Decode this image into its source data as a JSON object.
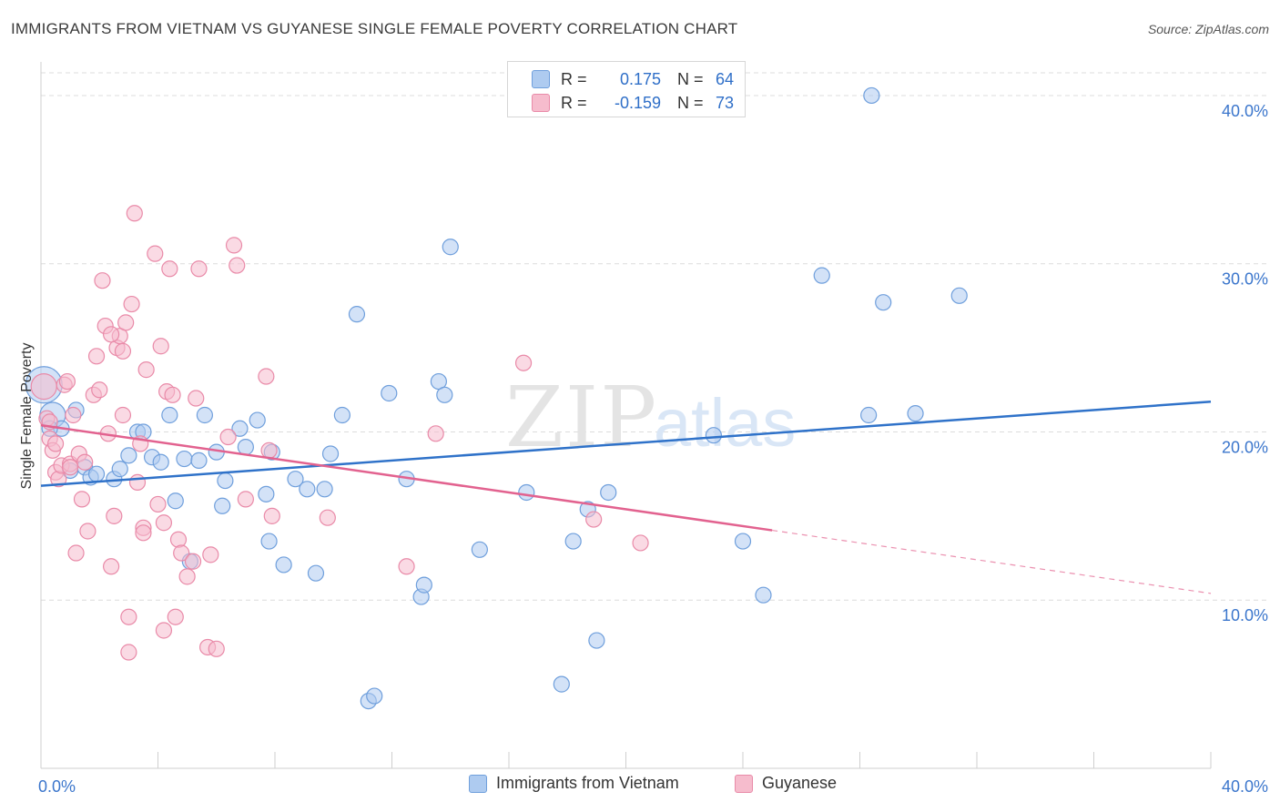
{
  "header": {
    "title": "IMMIGRANTS FROM VIETNAM VS GUYANESE SINGLE FEMALE POVERTY CORRELATION CHART",
    "source": "Source: ZipAtlas.com"
  },
  "watermark": {
    "zip": "ZIP",
    "atlas": "atlas"
  },
  "colors": {
    "blue_fill": "#aecbf0",
    "blue_stroke": "#6f9fdc",
    "blue_line": "#2f72c9",
    "pink_fill": "#f6bccd",
    "pink_stroke": "#e98aa8",
    "pink_line": "#e2628f",
    "tick_label": "#3b76cc",
    "grid": "#dcdcdc"
  },
  "legend_top": {
    "rows": [
      {
        "r_label": "R =",
        "r_value": "0.175",
        "n_label": "N =",
        "n_value": "64"
      },
      {
        "r_label": "R =",
        "r_value": "-0.159",
        "n_label": "N =",
        "n_value": "73"
      }
    ]
  },
  "chart_data": {
    "type": "scatter",
    "title": "IMMIGRANTS FROM VIETNAM VS GUYANESE SINGLE FEMALE POVERTY CORRELATION CHART",
    "xlabel": "",
    "ylabel": "Single Female Poverty",
    "xlim": [
      0,
      40
    ],
    "ylim": [
      0,
      42
    ],
    "x_tick_labels": {
      "left": "0.0%",
      "right": "40.0%"
    },
    "y_ticks": [
      {
        "value": 10,
        "label": "10.0%"
      },
      {
        "value": 20,
        "label": "20.0%"
      },
      {
        "value": 30,
        "label": "30.0%"
      },
      {
        "value": 40,
        "label": "40.0%"
      }
    ],
    "grid": true,
    "legend_position": "top-center",
    "series": [
      {
        "name": "Immigrants from Vietnam",
        "color": "blue",
        "trend": {
          "x": [
            0,
            40
          ],
          "y": [
            16.8,
            21.8
          ],
          "dashed_from": null
        },
        "points": [
          {
            "x": 0.1,
            "y": 22.8,
            "s": 3
          },
          {
            "x": 0.4,
            "y": 21.0,
            "s": 2
          },
          {
            "x": 0.7,
            "y": 20.2
          },
          {
            "x": 1.2,
            "y": 21.3
          },
          {
            "x": 1.0,
            "y": 17.7
          },
          {
            "x": 1.5,
            "y": 17.9
          },
          {
            "x": 1.7,
            "y": 17.3
          },
          {
            "x": 1.9,
            "y": 17.5
          },
          {
            "x": 2.5,
            "y": 17.2
          },
          {
            "x": 3.0,
            "y": 18.6
          },
          {
            "x": 2.7,
            "y": 17.8
          },
          {
            "x": 3.3,
            "y": 20.0
          },
          {
            "x": 3.5,
            "y": 20.0
          },
          {
            "x": 3.8,
            "y": 18.5
          },
          {
            "x": 4.1,
            "y": 18.2
          },
          {
            "x": 4.4,
            "y": 21.0
          },
          {
            "x": 4.6,
            "y": 15.9
          },
          {
            "x": 4.9,
            "y": 18.4
          },
          {
            "x": 5.1,
            "y": 12.3
          },
          {
            "x": 5.4,
            "y": 18.3
          },
          {
            "x": 5.6,
            "y": 21.0
          },
          {
            "x": 6.0,
            "y": 18.8
          },
          {
            "x": 6.2,
            "y": 15.6
          },
          {
            "x": 6.3,
            "y": 17.1
          },
          {
            "x": 6.8,
            "y": 20.2
          },
          {
            "x": 7.0,
            "y": 19.1
          },
          {
            "x": 7.4,
            "y": 20.7
          },
          {
            "x": 7.7,
            "y": 16.3
          },
          {
            "x": 7.8,
            "y": 13.5
          },
          {
            "x": 7.9,
            "y": 18.8
          },
          {
            "x": 8.3,
            "y": 12.1
          },
          {
            "x": 8.7,
            "y": 17.2
          },
          {
            "x": 9.1,
            "y": 16.6
          },
          {
            "x": 9.4,
            "y": 11.6
          },
          {
            "x": 9.7,
            "y": 16.6
          },
          {
            "x": 9.9,
            "y": 18.7
          },
          {
            "x": 10.3,
            "y": 21.0
          },
          {
            "x": 10.8,
            "y": 27.0
          },
          {
            "x": 11.2,
            "y": 4.0
          },
          {
            "x": 11.4,
            "y": 4.3
          },
          {
            "x": 11.9,
            "y": 22.3
          },
          {
            "x": 12.5,
            "y": 17.2
          },
          {
            "x": 13.0,
            "y": 10.2
          },
          {
            "x": 13.1,
            "y": 10.9
          },
          {
            "x": 13.6,
            "y": 23.0
          },
          {
            "x": 13.8,
            "y": 22.2
          },
          {
            "x": 14.0,
            "y": 31.0
          },
          {
            "x": 15.0,
            "y": 13.0
          },
          {
            "x": 16.6,
            "y": 16.4
          },
          {
            "x": 17.8,
            "y": 5.0
          },
          {
            "x": 18.2,
            "y": 13.5
          },
          {
            "x": 18.7,
            "y": 15.4
          },
          {
            "x": 19.4,
            "y": 16.4
          },
          {
            "x": 19.0,
            "y": 7.6
          },
          {
            "x": 23.0,
            "y": 19.8
          },
          {
            "x": 24.0,
            "y": 13.5
          },
          {
            "x": 24.7,
            "y": 10.3
          },
          {
            "x": 26.7,
            "y": 29.3
          },
          {
            "x": 28.3,
            "y": 21.0
          },
          {
            "x": 28.4,
            "y": 40.0
          },
          {
            "x": 28.8,
            "y": 27.7
          },
          {
            "x": 29.9,
            "y": 21.1
          },
          {
            "x": 31.4,
            "y": 28.1
          },
          {
            "x": 0.3,
            "y": 20.2
          }
        ]
      },
      {
        "name": "Guyanese",
        "color": "pink",
        "trend": {
          "x": [
            0,
            40
          ],
          "y": [
            20.4,
            10.4
          ],
          "dashed_from": 25.0
        },
        "points": [
          {
            "x": 0.1,
            "y": 22.7,
            "s": 2
          },
          {
            "x": 0.2,
            "y": 20.8
          },
          {
            "x": 0.3,
            "y": 19.6
          },
          {
            "x": 0.4,
            "y": 18.9
          },
          {
            "x": 0.5,
            "y": 17.6
          },
          {
            "x": 0.6,
            "y": 17.2
          },
          {
            "x": 0.7,
            "y": 18.0
          },
          {
            "x": 0.8,
            "y": 22.8
          },
          {
            "x": 0.9,
            "y": 23.0
          },
          {
            "x": 1.0,
            "y": 18.1
          },
          {
            "x": 1.1,
            "y": 21.0
          },
          {
            "x": 1.2,
            "y": 12.8
          },
          {
            "x": 1.3,
            "y": 18.7
          },
          {
            "x": 1.4,
            "y": 16.0
          },
          {
            "x": 1.5,
            "y": 18.2
          },
          {
            "x": 1.6,
            "y": 14.1
          },
          {
            "x": 1.8,
            "y": 22.2
          },
          {
            "x": 1.9,
            "y": 24.5
          },
          {
            "x": 2.0,
            "y": 22.5
          },
          {
            "x": 2.1,
            "y": 29.0
          },
          {
            "x": 2.2,
            "y": 26.3
          },
          {
            "x": 2.3,
            "y": 19.9
          },
          {
            "x": 2.4,
            "y": 12.0
          },
          {
            "x": 2.5,
            "y": 15.0
          },
          {
            "x": 2.6,
            "y": 25.0
          },
          {
            "x": 2.7,
            "y": 25.7
          },
          {
            "x": 2.8,
            "y": 24.8
          },
          {
            "x": 2.9,
            "y": 26.5
          },
          {
            "x": 2.8,
            "y": 21.0
          },
          {
            "x": 3.0,
            "y": 9.0
          },
          {
            "x": 3.1,
            "y": 27.6
          },
          {
            "x": 3.2,
            "y": 33.0
          },
          {
            "x": 3.3,
            "y": 17.0
          },
          {
            "x": 3.4,
            "y": 19.3
          },
          {
            "x": 3.5,
            "y": 14.3
          },
          {
            "x": 3.6,
            "y": 23.7
          },
          {
            "x": 3.9,
            "y": 30.6
          },
          {
            "x": 4.0,
            "y": 15.7
          },
          {
            "x": 4.1,
            "y": 25.1
          },
          {
            "x": 4.2,
            "y": 14.6
          },
          {
            "x": 4.3,
            "y": 22.4
          },
          {
            "x": 4.4,
            "y": 29.7
          },
          {
            "x": 4.5,
            "y": 22.2
          },
          {
            "x": 4.6,
            "y": 9.0
          },
          {
            "x": 4.7,
            "y": 13.6
          },
          {
            "x": 4.8,
            "y": 12.8
          },
          {
            "x": 5.0,
            "y": 11.4
          },
          {
            "x": 5.2,
            "y": 12.3
          },
          {
            "x": 5.3,
            "y": 22.0
          },
          {
            "x": 5.4,
            "y": 29.7
          },
          {
            "x": 5.7,
            "y": 7.2
          },
          {
            "x": 5.8,
            "y": 12.7
          },
          {
            "x": 6.0,
            "y": 7.1
          },
          {
            "x": 6.4,
            "y": 19.7
          },
          {
            "x": 6.6,
            "y": 31.1
          },
          {
            "x": 6.7,
            "y": 29.9
          },
          {
            "x": 7.0,
            "y": 16.0
          },
          {
            "x": 7.7,
            "y": 23.3
          },
          {
            "x": 7.8,
            "y": 18.9
          },
          {
            "x": 7.9,
            "y": 15.0
          },
          {
            "x": 9.8,
            "y": 14.9
          },
          {
            "x": 12.5,
            "y": 12.0
          },
          {
            "x": 13.5,
            "y": 19.9
          },
          {
            "x": 16.5,
            "y": 24.1
          },
          {
            "x": 18.9,
            "y": 14.8
          },
          {
            "x": 20.5,
            "y": 13.4
          },
          {
            "x": 0.5,
            "y": 19.3
          },
          {
            "x": 1.0,
            "y": 17.9
          },
          {
            "x": 2.4,
            "y": 25.8
          },
          {
            "x": 3.5,
            "y": 14.0
          },
          {
            "x": 3.0,
            "y": 6.9
          },
          {
            "x": 4.2,
            "y": 8.2
          },
          {
            "x": 0.3,
            "y": 20.6
          }
        ]
      }
    ]
  },
  "legend_bottom": {
    "items": [
      {
        "label": "Immigrants from Vietnam"
      },
      {
        "label": "Guyanese"
      }
    ]
  }
}
